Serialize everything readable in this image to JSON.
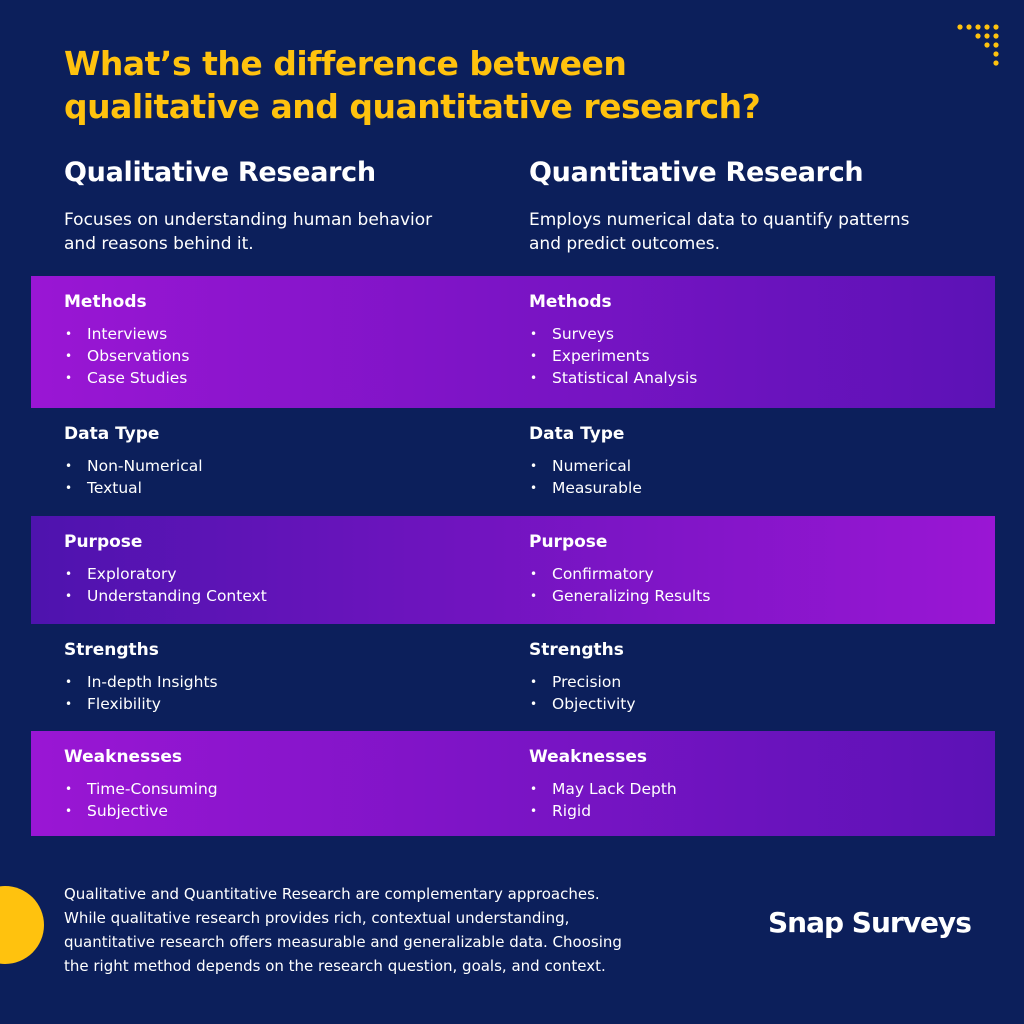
{
  "title": "What’s the difference between qualitative and quantitative research?",
  "columns": [
    {
      "heading": "Qualitative Research",
      "description": "Focuses on understanding human behavior and reasons behind it.",
      "rows": [
        {
          "label": "Methods",
          "items": [
            "Interviews",
            "Observations",
            "Case Studies"
          ]
        },
        {
          "label": "Data Type",
          "items": [
            "Non-Numerical",
            "Textual"
          ]
        },
        {
          "label": "Purpose",
          "items": [
            "Exploratory",
            "Understanding Context"
          ]
        },
        {
          "label": "Strengths",
          "items": [
            "In-depth Insights",
            "Flexibility"
          ]
        },
        {
          "label": "Weaknesses",
          "items": [
            "Time-Consuming",
            "Subjective"
          ]
        }
      ]
    },
    {
      "heading": "Quantitative Research",
      "description": "Employs numerical data to quantify patterns and predict outcomes.",
      "rows": [
        {
          "label": "Methods",
          "items": [
            "Surveys",
            "Experiments",
            "Statistical Analysis"
          ]
        },
        {
          "label": "Data Type",
          "items": [
            "Numerical",
            "Measurable"
          ]
        },
        {
          "label": "Purpose",
          "items": [
            "Confirmatory",
            "Generalizing Results"
          ]
        },
        {
          "label": "Strengths",
          "items": [
            "Precision",
            "Objectivity"
          ]
        },
        {
          "label": "Weaknesses",
          "items": [
            "May Lack Depth",
            "Rigid"
          ]
        }
      ]
    }
  ],
  "footer": "Qualitative and Quantitative Research are complementary approaches. While qualitative research provides rich, contextual understanding, quantitative research offers measurable and generalizable data. Choosing the right method depends on the research question, goals, and context.",
  "logo": "Snap Surveys"
}
